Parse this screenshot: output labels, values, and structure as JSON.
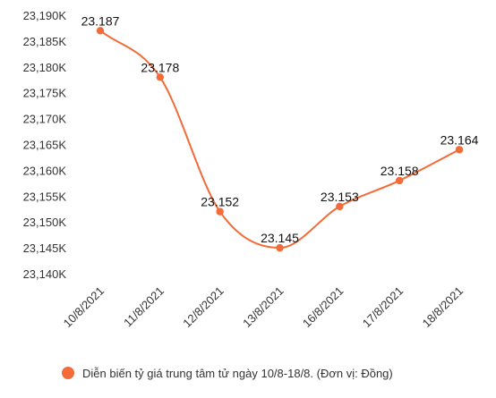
{
  "chart_data": {
    "type": "line",
    "title": "",
    "xlabel": "",
    "ylabel": "",
    "categories": [
      "10/8/2021",
      "11/8/2021",
      "12/8/2021",
      "13/8/2021",
      "16/8/2021",
      "17/8/2021",
      "18/8/2021"
    ],
    "series": [
      {
        "name": "Diễn biến tỷ giá trung tâm tử ngày 10/8-18/8. (Đơn vị: Đồng)",
        "values": [
          23187,
          23178,
          23152,
          23145,
          23153,
          23158,
          23164
        ],
        "data_labels": [
          "23.187",
          "23.178",
          "23.152",
          "23.145",
          "23.153",
          "23.158",
          "23.164"
        ],
        "color": "#f26b38",
        "smooth": true
      }
    ],
    "y_ticks": [
      23140,
      23145,
      23150,
      23155,
      23160,
      23165,
      23170,
      23175,
      23180,
      23185,
      23190
    ],
    "y_tick_labels": [
      "23,140K",
      "23,145K",
      "23,150K",
      "23,155K",
      "23,160K",
      "23,165K",
      "23,170K",
      "23,175K",
      "23,180K",
      "23,185K",
      "23,190K"
    ],
    "ylim": [
      23140,
      23190
    ],
    "grid": false,
    "legend": {
      "position": "bottom",
      "label": "Diễn biến tỷ giá trung tâm tử ngày 10/8-18/8. (Đơn vị: Đồng)",
      "marker": "circle"
    }
  }
}
